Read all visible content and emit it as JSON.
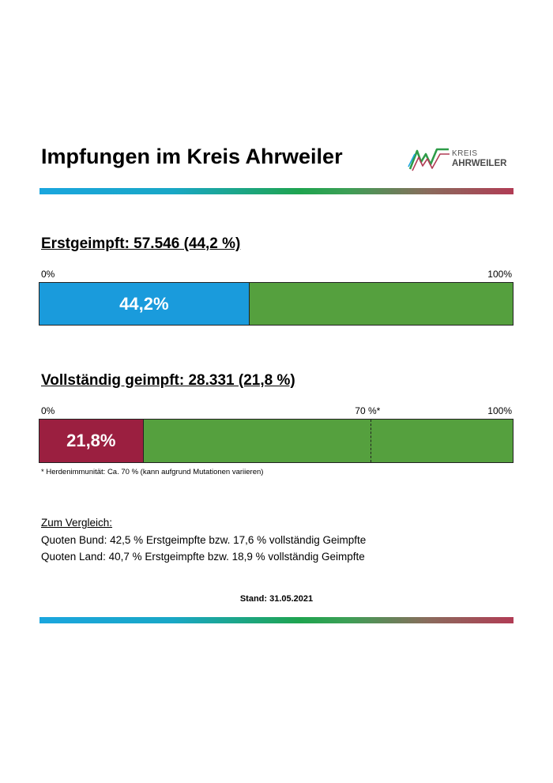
{
  "header": {
    "title": "Impfungen im Kreis Ahrweiler",
    "logo_line1": "KREIS",
    "logo_line2": "AHRWEILER"
  },
  "colors": {
    "first_dose": "#1a9bdc",
    "full_dose": "#9b1f40",
    "remaining": "#55a03e"
  },
  "first_dose": {
    "heading": "Erstgeimpft: 57.546 (44,2 %)",
    "axis_start": "0%",
    "axis_end": "100%",
    "label": "44,2%",
    "percent": 44.2
  },
  "full_dose": {
    "heading": "Vollständig geimpft: 28.331 (21,8 %)",
    "axis_start": "0%",
    "axis_mark": "70 %*",
    "axis_end": "100%",
    "label": "21,8%",
    "percent": 21.8,
    "herd_immunity_percent": 70
  },
  "footnote": "* Herdenimmunität: Ca. 70 % (kann aufgrund Mutationen variieren)",
  "comparison": {
    "heading": "Zum Vergleich:",
    "bund": "Quoten Bund: 42,5 % Erstgeimpfte bzw. 17,6 % vollständig Geimpfte",
    "land": "Quoten Land: 40,7 % Erstgeimpfte bzw. 18,9 % vollständig Geimpfte"
  },
  "stand": "Stand: 31.05.2021"
}
